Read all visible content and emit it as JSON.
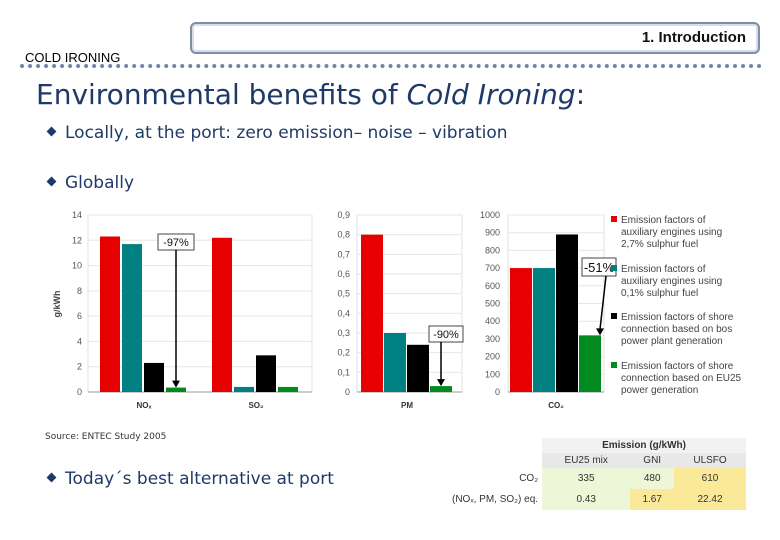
{
  "header": {
    "title": "1. Introduction",
    "section": "COLD IRONING"
  },
  "slide": {
    "title_plain": "Environmental benefits of ",
    "title_italic": "Cold Ironing",
    "title_colon": ":",
    "bullets": [
      "Locally,  at the port: zero emission– noise – vibration",
      "Globally",
      "Today´s best alternative at port"
    ],
    "source": "Source: ENTEC Study 2005"
  },
  "colors": {
    "red": "#e60000",
    "teal": "#008080",
    "black": "#000000",
    "green": "#008a20",
    "title": "#1f3a68"
  },
  "chart_data": [
    {
      "type": "bar",
      "ylabel": "g/kWh",
      "ylim": [
        0,
        14
      ],
      "yticks": [
        "0",
        "2",
        "4",
        "6",
        "8",
        "10",
        "12",
        "14"
      ],
      "categories": [
        "NOₓ",
        "SO₂"
      ],
      "series": [
        {
          "values": [
            12.3,
            12.2
          ]
        },
        {
          "values": [
            11.7,
            0.4
          ]
        },
        {
          "values": [
            2.3,
            2.9
          ]
        },
        {
          "values": [
            0.35,
            0.4
          ]
        }
      ],
      "annotations": [
        "-97%"
      ]
    },
    {
      "type": "bar",
      "ylim": [
        0,
        0.9
      ],
      "yticks": [
        "0",
        "0,1",
        "0,2",
        "0,3",
        "0,4",
        "0,5",
        "0,6",
        "0,7",
        "0,8",
        "0,9"
      ],
      "categories": [
        "PM"
      ],
      "series": [
        {
          "values": [
            0.8
          ]
        },
        {
          "values": [
            0.3
          ]
        },
        {
          "values": [
            0.24
          ]
        },
        {
          "values": [
            0.03
          ]
        }
      ],
      "annotations": [
        "-90%"
      ]
    },
    {
      "type": "bar",
      "ylim": [
        0,
        1000
      ],
      "yticks": [
        "0",
        "100",
        "200",
        "300",
        "400",
        "500",
        "600",
        "700",
        "800",
        "900",
        "1000"
      ],
      "categories": [
        "CO₂"
      ],
      "series": [
        {
          "name": "Emission factors of auxiliary engines using 2,7% sulphur fuel",
          "values": [
            700
          ]
        },
        {
          "name": "Emission factors of auxiliary engines using 0,1% sulphur fuel",
          "values": [
            700
          ]
        },
        {
          "name": "Emission factors of shore connection based on bos power plant generation",
          "values": [
            890
          ]
        },
        {
          "name": "Emission factors of shore connection based on EU25 power generation",
          "values": [
            320
          ]
        }
      ],
      "annotations": [
        "-51%"
      ]
    }
  ],
  "table": {
    "title": "Emission (g/kWh)",
    "columns": [
      "EU25 mix",
      "GNI",
      "ULSFO"
    ],
    "rows": [
      {
        "label": "CO₂",
        "values": [
          "335",
          "480",
          "610"
        ]
      },
      {
        "label": "(NOₓ, PM, SO₂) eq.",
        "values": [
          "0.43",
          "1.67",
          "22.42"
        ]
      }
    ]
  }
}
